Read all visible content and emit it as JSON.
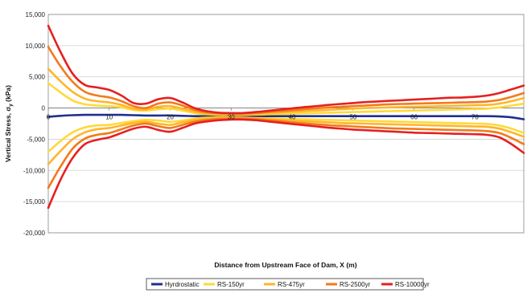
{
  "chart_data": {
    "type": "line",
    "title": "",
    "xlabel": "Distance from Upstream Face of Dam, X (m)",
    "ylabel": "Vertical Stress, σ",
    "ylabel_sub": "y",
    "ylabel_unit": " (kPa)",
    "xlim": [
      0,
      78
    ],
    "ylim": [
      -20000,
      15000
    ],
    "xticks": [
      0,
      10,
      20,
      30,
      40,
      50,
      60,
      70
    ],
    "xtick_labels": [
      "0",
      "10",
      "20",
      "30",
      "40",
      "50",
      "60",
      "70"
    ],
    "yticks": [
      15000,
      10000,
      5000,
      0,
      -5000,
      -10000,
      -15000,
      -20000
    ],
    "ytick_labels": [
      "15,000",
      "10,000",
      "5,000",
      "0",
      "-5,000",
      "-10,000",
      "-15,000",
      "-20,000"
    ],
    "grid": "horizontal",
    "legend_position": "bottom",
    "x": [
      0,
      2,
      4,
      6,
      8,
      10,
      12,
      14,
      16,
      18,
      20,
      22,
      24,
      26,
      28,
      30,
      32,
      34,
      36,
      38,
      40,
      42,
      44,
      46,
      48,
      50,
      52,
      54,
      56,
      58,
      60,
      62,
      64,
      66,
      68,
      70,
      72,
      74,
      76,
      78
    ],
    "series": [
      {
        "name": "Hyrdrostatic",
        "color": "#1f2f8f",
        "values": [
          -1400,
          -1250,
          -1150,
          -1100,
          -1100,
          -1100,
          -1100,
          -1150,
          -1200,
          -1200,
          -1200,
          -1250,
          -1300,
          -1300,
          -1300,
          -1300,
          -1300,
          -1300,
          -1300,
          -1300,
          -1300,
          -1300,
          -1300,
          -1300,
          -1300,
          -1300,
          -1300,
          -1300,
          -1300,
          -1300,
          -1300,
          -1300,
          -1300,
          -1300,
          -1300,
          -1300,
          -1300,
          -1350,
          -1500,
          -1800
        ]
      },
      {
        "name": "RS-150yr",
        "color": "#ffd93a",
        "values": [
          4000,
          2500,
          1200,
          600,
          400,
          300,
          100,
          -300,
          -400,
          -200,
          -100,
          -400,
          -800,
          -1000,
          -1100,
          -1100,
          -1100,
          -1050,
          -1000,
          -950,
          -900,
          -850,
          -800,
          -750,
          -700,
          -650,
          -600,
          -550,
          -500,
          -450,
          -400,
          -350,
          -300,
          -250,
          -200,
          -150,
          -100,
          100,
          400,
          700
        ]
      },
      {
        "name": "RS-150yr",
        "color": "#ffd93a",
        "values": [
          -7000,
          -5300,
          -3900,
          -3100,
          -2800,
          -2700,
          -2400,
          -2100,
          -1900,
          -2000,
          -2200,
          -2000,
          -1700,
          -1550,
          -1500,
          -1500,
          -1550,
          -1600,
          -1650,
          -1700,
          -1750,
          -1800,
          -1850,
          -1900,
          -1950,
          -2000,
          -2050,
          -2100,
          -2150,
          -2200,
          -2250,
          -2300,
          -2350,
          -2400,
          -2450,
          -2500,
          -2550,
          -2800,
          -3300,
          -4000
        ]
      },
      {
        "name": "RS-475yr",
        "color": "#ffb52a",
        "values": [
          6300,
          4300,
          2600,
          1500,
          1100,
          900,
          500,
          -100,
          -250,
          200,
          300,
          -100,
          -600,
          -850,
          -950,
          -1000,
          -1000,
          -900,
          -800,
          -700,
          -600,
          -500,
          -400,
          -300,
          -200,
          -100,
          0,
          50,
          100,
          150,
          200,
          250,
          300,
          350,
          400,
          450,
          500,
          700,
          1100,
          1600
        ]
      },
      {
        "name": "RS-475yr",
        "color": "#ffb52a",
        "values": [
          -9000,
          -6900,
          -5000,
          -3900,
          -3400,
          -3200,
          -2800,
          -2400,
          -2200,
          -2500,
          -2700,
          -2300,
          -1900,
          -1700,
          -1600,
          -1600,
          -1650,
          -1700,
          -1800,
          -1900,
          -2000,
          -2100,
          -2200,
          -2300,
          -2400,
          -2450,
          -2500,
          -2550,
          -2600,
          -2650,
          -2700,
          -2750,
          -2800,
          -2850,
          -2900,
          -2950,
          -3000,
          -3300,
          -3900,
          -4600
        ]
      },
      {
        "name": "RS-2500yr",
        "color": "#f27a1a",
        "values": [
          9800,
          6700,
          4200,
          2600,
          2000,
          1700,
          1100,
          300,
          0,
          700,
          900,
          400,
          -300,
          -700,
          -850,
          -900,
          -900,
          -800,
          -650,
          -500,
          -350,
          -200,
          -50,
          100,
          200,
          300,
          400,
          500,
          600,
          650,
          700,
          750,
          800,
          850,
          900,
          950,
          1050,
          1300,
          1800,
          2400
        ]
      },
      {
        "name": "RS-2500yr",
        "color": "#f27a1a",
        "values": [
          -12800,
          -9400,
          -6500,
          -4900,
          -4300,
          -4000,
          -3400,
          -2800,
          -2500,
          -2900,
          -3200,
          -2700,
          -2200,
          -1900,
          -1750,
          -1700,
          -1700,
          -1800,
          -1950,
          -2100,
          -2300,
          -2450,
          -2600,
          -2750,
          -2850,
          -2950,
          -3050,
          -3150,
          -3250,
          -3300,
          -3350,
          -3400,
          -3450,
          -3500,
          -3550,
          -3600,
          -3700,
          -4000,
          -4800,
          -5800
        ]
      },
      {
        "name": "RS-10000yr",
        "color": "#e62020",
        "values": [
          13200,
          9000,
          5500,
          3700,
          3300,
          2900,
          2000,
          800,
          700,
          1400,
          1600,
          900,
          0,
          -500,
          -750,
          -800,
          -800,
          -650,
          -450,
          -250,
          -50,
          150,
          300,
          500,
          650,
          800,
          950,
          1050,
          1150,
          1250,
          1350,
          1450,
          1550,
          1650,
          1700,
          1800,
          2000,
          2400,
          3000,
          3600
        ]
      },
      {
        "name": "RS-10000yr",
        "color": "#e62020",
        "values": [
          -16000,
          -11500,
          -8000,
          -5800,
          -5100,
          -4700,
          -4000,
          -3300,
          -3000,
          -3500,
          -3800,
          -3200,
          -2500,
          -2150,
          -1950,
          -1850,
          -1850,
          -1950,
          -2150,
          -2350,
          -2550,
          -2750,
          -2950,
          -3150,
          -3300,
          -3450,
          -3550,
          -3650,
          -3750,
          -3850,
          -3950,
          -4000,
          -4050,
          -4100,
          -4150,
          -4200,
          -4300,
          -4700,
          -5800,
          -7200
        ]
      }
    ],
    "legend": [
      {
        "label": "Hyrdrostatic",
        "color": "#1f2f8f"
      },
      {
        "label": "RS-150yr",
        "color": "#ffd93a"
      },
      {
        "label": "RS-475yr",
        "color": "#ffb52a"
      },
      {
        "label": "RS-2500yr",
        "color": "#f27a1a"
      },
      {
        "label": "RS-10000yr",
        "color": "#e62020"
      }
    ]
  }
}
